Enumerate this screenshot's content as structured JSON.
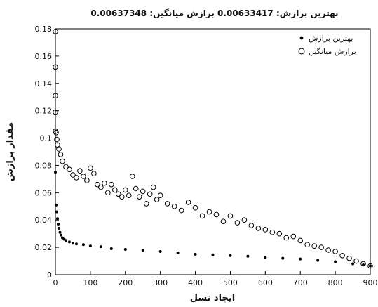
{
  "chart_data": {
    "type": "scatter",
    "title": "بهترین برازش: 0.00633417     برازش میانگین: 0.00637348",
    "xlabel": "ایجاد نسل",
    "ylabel": "مقدار برازش",
    "xlim": [
      0,
      900
    ],
    "ylim": [
      0,
      0.18
    ],
    "xticks": [
      0,
      100,
      200,
      300,
      400,
      500,
      600,
      700,
      800,
      900
    ],
    "yticks": [
      0,
      0.02,
      0.04,
      0.06,
      0.08,
      0.1,
      0.12,
      0.14,
      0.16,
      0.18
    ],
    "xtick_labels": [
      "0",
      "100",
      "200",
      "300",
      "400",
      "500",
      "600",
      "700",
      "800",
      "900"
    ],
    "ytick_labels": [
      "0",
      "0.02",
      "0.04",
      "0.06",
      "0.08",
      "0.1",
      "0.12",
      "0.14",
      "0.16",
      "0.18"
    ],
    "legend_position": "top-right",
    "grid": false,
    "series": [
      {
        "name": "بهترین برازش",
        "marker": "dot",
        "color": "#000000",
        "x": [
          0,
          2,
          4,
          6,
          8,
          10,
          13,
          16,
          20,
          25,
          30,
          40,
          50,
          60,
          80,
          100,
          130,
          160,
          200,
          250,
          300,
          350,
          400,
          450,
          500,
          550,
          600,
          650,
          700,
          750,
          800,
          850,
          880,
          900
        ],
        "y": [
          0.075,
          0.051,
          0.046,
          0.041,
          0.037,
          0.034,
          0.031,
          0.029,
          0.027,
          0.026,
          0.025,
          0.024,
          0.023,
          0.0225,
          0.022,
          0.021,
          0.0205,
          0.019,
          0.0185,
          0.018,
          0.017,
          0.016,
          0.015,
          0.0145,
          0.014,
          0.0135,
          0.0125,
          0.012,
          0.0115,
          0.0105,
          0.0095,
          0.008,
          0.0072,
          0.0064
        ]
      },
      {
        "name": "برازش میانگین",
        "marker": "circle",
        "color": "#000000",
        "x": [
          0,
          0,
          0,
          0,
          0,
          2,
          4,
          6,
          10,
          15,
          20,
          30,
          40,
          50,
          60,
          70,
          80,
          90,
          100,
          110,
          120,
          130,
          140,
          150,
          160,
          170,
          180,
          190,
          200,
          210,
          220,
          230,
          240,
          250,
          260,
          270,
          280,
          290,
          300,
          320,
          340,
          360,
          380,
          400,
          420,
          440,
          460,
          480,
          500,
          520,
          540,
          560,
          580,
          600,
          620,
          640,
          660,
          680,
          700,
          720,
          740,
          760,
          780,
          800,
          820,
          840,
          860,
          880,
          900
        ],
        "y": [
          0.178,
          0.152,
          0.131,
          0.119,
          0.105,
          0.104,
          0.099,
          0.095,
          0.092,
          0.088,
          0.083,
          0.079,
          0.077,
          0.073,
          0.071,
          0.076,
          0.072,
          0.069,
          0.078,
          0.074,
          0.066,
          0.064,
          0.067,
          0.06,
          0.066,
          0.062,
          0.059,
          0.057,
          0.062,
          0.058,
          0.072,
          0.063,
          0.057,
          0.061,
          0.052,
          0.059,
          0.064,
          0.055,
          0.058,
          0.052,
          0.05,
          0.047,
          0.053,
          0.049,
          0.043,
          0.046,
          0.044,
          0.039,
          0.043,
          0.038,
          0.04,
          0.036,
          0.034,
          0.033,
          0.031,
          0.03,
          0.027,
          0.028,
          0.025,
          0.022,
          0.021,
          0.02,
          0.018,
          0.017,
          0.014,
          0.012,
          0.01,
          0.008,
          0.0064
        ]
      }
    ]
  }
}
